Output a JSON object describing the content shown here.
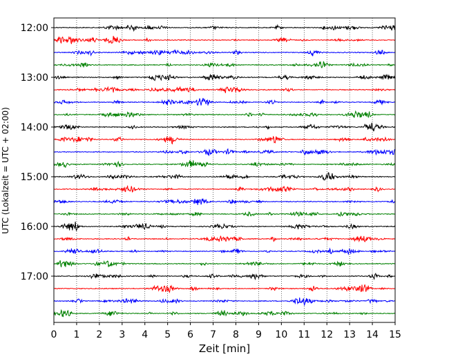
{
  "chart_data": {
    "type": "line",
    "title": "",
    "xlabel": "Zeit  [min]",
    "ylabel": "UTC (Lokalzeit = UTC + 02:00)",
    "xlim": [
      0,
      15
    ],
    "x_ticks": [
      "0",
      "1",
      "2",
      "3",
      "4",
      "5",
      "6",
      "7",
      "8",
      "9",
      "10",
      "11",
      "12",
      "13",
      "14",
      "15"
    ],
    "y_ticks": [
      "12:00",
      "13:00",
      "14:00",
      "15:00",
      "16:00",
      "17:00"
    ],
    "grid": "vertical-dotted",
    "trace_minutes": 15,
    "traces_start": "12:00",
    "trace_count": 24,
    "colors": [
      "#000000",
      "#ff0000",
      "#0000ff",
      "#008000"
    ]
  }
}
